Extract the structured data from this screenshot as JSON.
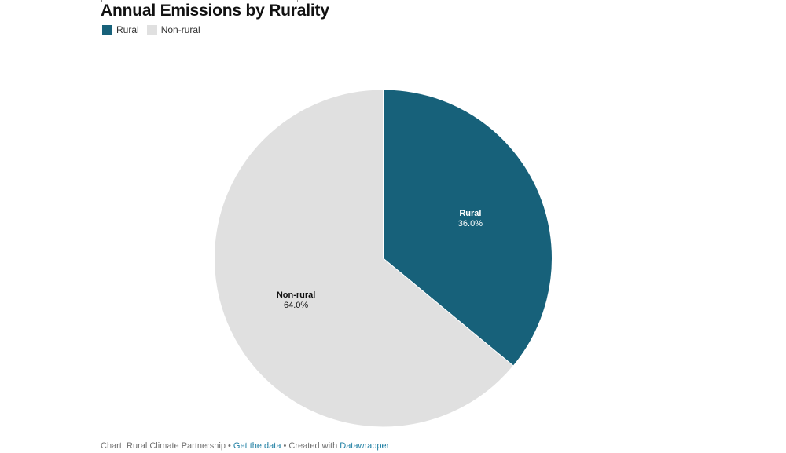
{
  "chart_data": {
    "type": "pie",
    "title": "Annual Emissions by Rurality",
    "categories": [
      "Rural",
      "Non-rural"
    ],
    "values": [
      36.0,
      64.0
    ],
    "value_labels": [
      "36.0%",
      "64.0%"
    ],
    "colors": [
      "#17617a",
      "#e0e0e0"
    ],
    "label_colors": [
      "#ffffff",
      "#111111"
    ],
    "legend": {
      "placement": "top-left",
      "items": [
        {
          "label": "Rural",
          "color": "#17617a"
        },
        {
          "label": "Non-rural",
          "color": "#e0e0e0"
        }
      ]
    },
    "start_angle_deg": 0,
    "direction": "clockwise"
  },
  "footer": {
    "source": "Chart: Rural Climate Partnership",
    "sep1": " • ",
    "data_link": "Get the data",
    "sep2": " • Created with ",
    "credit_link": "Datawrapper"
  }
}
